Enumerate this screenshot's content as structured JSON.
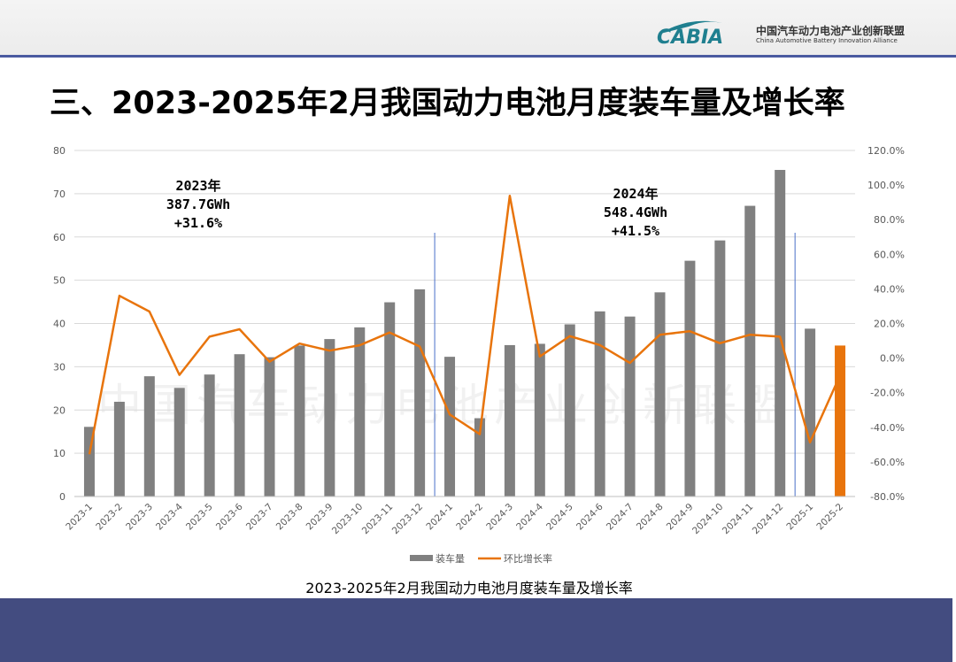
{
  "header": {
    "logo_text": "CABIA",
    "org_name_cn": "中国汽车动力电池产业创新联盟",
    "org_name_en": "China Automotive Battery Innovation Alliance"
  },
  "title": "三、2023-2025年2月我国动力电池月度装车量及增长率",
  "watermark": "中国汽车动力电池产业创新联盟",
  "annotations": {
    "y2023": {
      "line1": "2023年",
      "line2": "387.7GWh",
      "line3": "+31.6%"
    },
    "y2024": {
      "line1": "2024年",
      "line2": "548.4GWh",
      "line3": "+41.5%"
    }
  },
  "caption": "2023-2025年2月我国动力电池月度装车量及增长率",
  "colors": {
    "bar": "#808080",
    "bar_highlight": "#e8740c",
    "line": "#e8740c",
    "divider": "#4a6fc8",
    "grid": "#d9d9d9",
    "header_rule": "#4a5aa0",
    "footer": "#434c80",
    "logo": "#1f7f8f"
  },
  "chart_data": {
    "type": "bar",
    "categories": [
      "2023-1",
      "2023-2",
      "2023-3",
      "2023-4",
      "2023-5",
      "2023-6",
      "2023-7",
      "2023-8",
      "2023-9",
      "2023-10",
      "2023-11",
      "2023-12",
      "2024-1",
      "2024-2",
      "2024-3",
      "2024-4",
      "2024-5",
      "2024-6",
      "2024-7",
      "2024-8",
      "2024-9",
      "2024-10",
      "2024-11",
      "2024-12",
      "2025-1",
      "2025-2"
    ],
    "series": [
      {
        "name": "装车量",
        "type": "bar",
        "axis": "left",
        "values": [
          16.1,
          21.9,
          27.8,
          25.1,
          28.2,
          32.9,
          32.2,
          34.9,
          36.4,
          39.1,
          44.9,
          47.9,
          32.3,
          18.1,
          35.0,
          35.3,
          39.8,
          42.8,
          41.6,
          47.2,
          54.5,
          59.2,
          67.2,
          75.5,
          38.8,
          34.9
        ],
        "highlight_index": 25
      },
      {
        "name": "环比增长率",
        "type": "line",
        "axis": "right",
        "values": [
          -55.6,
          36.0,
          26.9,
          -9.7,
          12.4,
          16.7,
          -2.1,
          8.4,
          4.3,
          7.4,
          14.8,
          6.7,
          -32.6,
          -44.0,
          93.8,
          0.9,
          12.7,
          7.5,
          -2.8,
          13.5,
          15.5,
          8.6,
          13.5,
          12.4,
          -48.7,
          -10.0
        ],
        "unit": "%"
      }
    ],
    "ylim_left": [
      0,
      80
    ],
    "yticks_left": [
      "0",
      "10",
      "20",
      "30",
      "40",
      "50",
      "60",
      "70",
      "80"
    ],
    "ylim_right": [
      -80,
      120
    ],
    "yticks_right": [
      "-80.0%",
      "-60.0%",
      "-40.0%",
      "-20.0%",
      "0.0%",
      "20.0%",
      "40.0%",
      "60.0%",
      "80.0%",
      "100.0%",
      "120.0%"
    ],
    "grid": true,
    "legend_position": "bottom-center",
    "dividers_after": [
      "2023-12",
      "2024-12"
    ]
  }
}
